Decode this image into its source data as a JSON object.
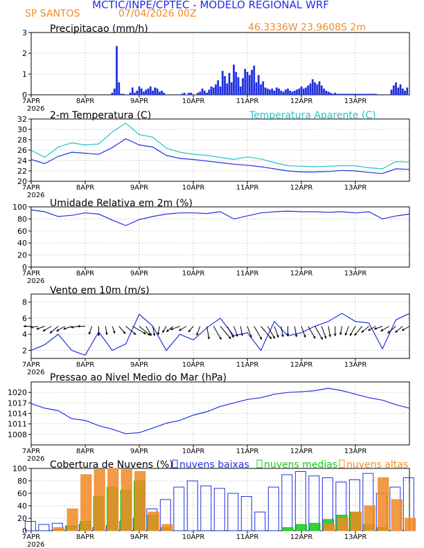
{
  "header": {
    "title": "MCTIC/INPE/CPTEC - MODELO REGIONAL WRF",
    "station": "SP SANTOS",
    "run": "07/04/2026 00Z",
    "location": "46.3336W 23.9608S 2m"
  },
  "colors": {
    "title": "#1f2fe0",
    "orange": "#f08a24",
    "blue": "#1f2fe0",
    "cyan": "#22c2c6",
    "green": "#17c41c",
    "grid": "#888888",
    "arrow": "#000000"
  },
  "time_axis": {
    "labels": [
      "7APR",
      "8APR",
      "9APR",
      "10APR",
      "11APR",
      "12APR",
      "13APR"
    ],
    "year": "2026",
    "start_hour": 0,
    "end_hour": 168
  },
  "chart_data": [
    {
      "id": "precip",
      "type": "bar",
      "title": "Precipitacao (mm/h)",
      "ylim": [
        0,
        3
      ],
      "yticks": [
        "0",
        "1",
        "2",
        "3"
      ],
      "ytick_values": [
        0,
        1,
        2,
        3
      ],
      "grid": true,
      "color": "#1f2fe0",
      "x": [
        36,
        37,
        38,
        39,
        40,
        41,
        44,
        45,
        46,
        47,
        48,
        49,
        50,
        51,
        52,
        53,
        54,
        55,
        56,
        57,
        58,
        59,
        67,
        68,
        70,
        71,
        74,
        75,
        76,
        77,
        78,
        79,
        80,
        81,
        82,
        83,
        84,
        85,
        86,
        87,
        88,
        89,
        90,
        91,
        92,
        93,
        94,
        95,
        96,
        97,
        98,
        99,
        100,
        101,
        102,
        103,
        104,
        105,
        106,
        107,
        108,
        109,
        110,
        111,
        112,
        113,
        114,
        115,
        116,
        117,
        118,
        119,
        120,
        121,
        122,
        123,
        124,
        125,
        126,
        127,
        128,
        129,
        130,
        131,
        132,
        133,
        134,
        135,
        136,
        137,
        138,
        139,
        140,
        141,
        142,
        143,
        144,
        145,
        146,
        147,
        148,
        149,
        150,
        151,
        152,
        153,
        160,
        161,
        162,
        163,
        164,
        165,
        166,
        167
      ],
      "values": [
        0.1,
        0.3,
        2.35,
        0.6,
        0.05,
        0.05,
        0.1,
        0.35,
        0.1,
        0.2,
        0.4,
        0.3,
        0.15,
        0.25,
        0.3,
        0.4,
        0.2,
        0.35,
        0.3,
        0.15,
        0.2,
        0.1,
        0.05,
        0.1,
        0.1,
        0.1,
        0.1,
        0.15,
        0.3,
        0.2,
        0.1,
        0.25,
        0.4,
        0.35,
        0.5,
        0.7,
        0.4,
        1.15,
        0.9,
        0.55,
        1.05,
        0.6,
        1.45,
        1.1,
        0.85,
        0.4,
        0.8,
        1.25,
        1.1,
        0.95,
        1.2,
        1.4,
        0.6,
        0.95,
        0.5,
        0.65,
        0.35,
        0.3,
        0.25,
        0.3,
        0.2,
        0.35,
        0.3,
        0.2,
        0.15,
        0.25,
        0.3,
        0.2,
        0.15,
        0.2,
        0.25,
        0.3,
        0.4,
        0.3,
        0.35,
        0.45,
        0.55,
        0.75,
        0.6,
        0.5,
        0.65,
        0.45,
        0.3,
        0.2,
        0.15,
        0.1,
        0.05,
        0.1,
        0.05,
        0.05,
        0.05,
        0.05,
        0.05,
        0.05,
        0.05,
        0.05,
        0.05,
        0.05,
        0.05,
        0.05,
        0.05,
        0.05,
        0.05,
        0.05,
        0.05,
        0.05,
        0.25,
        0.45,
        0.6,
        0.35,
        0.5,
        0.3,
        0.2,
        0.35
      ]
    },
    {
      "id": "temp",
      "type": "line",
      "title": "2-m Temperatura (C)",
      "legend": "Temperatura Aparente (C)",
      "ylim": [
        20,
        32
      ],
      "yticks": [
        "20",
        "22",
        "24",
        "26",
        "28",
        "30",
        "32"
      ],
      "ytick_values": [
        20,
        22,
        24,
        26,
        28,
        30,
        32
      ],
      "grid": true,
      "series": [
        {
          "color": "#1f2fe0",
          "x": [
            0,
            6,
            12,
            18,
            24,
            30,
            36,
            42,
            48,
            54,
            60,
            66,
            72,
            78,
            84,
            90,
            96,
            102,
            108,
            114,
            120,
            126,
            132,
            138,
            144,
            150,
            156,
            162,
            168
          ],
          "values": [
            24.2,
            23.4,
            24.8,
            25.6,
            25.4,
            25.2,
            26.5,
            28.2,
            27.0,
            26.6,
            25.0,
            24.4,
            24.2,
            23.9,
            23.6,
            23.3,
            23.1,
            22.8,
            22.4,
            22.0,
            21.8,
            21.8,
            21.9,
            22.1,
            22.0,
            21.7,
            21.5,
            22.4,
            22.3
          ]
        },
        {
          "color": "#22c2c6",
          "x": [
            0,
            6,
            12,
            18,
            24,
            30,
            36,
            42,
            48,
            54,
            60,
            66,
            72,
            78,
            84,
            90,
            96,
            102,
            108,
            114,
            120,
            126,
            132,
            138,
            144,
            150,
            156,
            162,
            168
          ],
          "values": [
            26.0,
            24.6,
            26.6,
            27.4,
            27.0,
            27.2,
            29.5,
            31.2,
            29.0,
            28.5,
            26.4,
            25.6,
            25.2,
            25.0,
            24.6,
            24.2,
            24.7,
            24.3,
            23.6,
            23.0,
            22.9,
            22.8,
            22.9,
            23.0,
            23.0,
            22.6,
            22.4,
            23.8,
            23.7
          ]
        }
      ]
    },
    {
      "id": "rh",
      "type": "line",
      "title": "Umidade Relativa em 2m (%)",
      "ylim": [
        0,
        100
      ],
      "yticks": [
        "0",
        "20",
        "40",
        "60",
        "80",
        "100"
      ],
      "ytick_values": [
        0,
        20,
        40,
        60,
        80,
        100
      ],
      "grid": true,
      "series": [
        {
          "color": "#1f2fe0",
          "x": [
            0,
            6,
            12,
            18,
            24,
            30,
            36,
            42,
            48,
            54,
            60,
            66,
            72,
            78,
            84,
            90,
            96,
            102,
            108,
            114,
            120,
            126,
            132,
            138,
            144,
            150,
            156,
            162,
            168
          ],
          "values": [
            95,
            92,
            84,
            86,
            90,
            88,
            78,
            69,
            79,
            84,
            88,
            90,
            90,
            89,
            92,
            80,
            85,
            90,
            92,
            93,
            92,
            92,
            91,
            92,
            90,
            92,
            80,
            85,
            88
          ]
        }
      ]
    },
    {
      "id": "wind",
      "type": "line",
      "title": "Vento em 10m (m/s)",
      "ylim": [
        1,
        9
      ],
      "yticks": [
        "2",
        "4",
        "6",
        "8"
      ],
      "ytick_values": [
        2,
        4,
        6,
        8
      ],
      "grid": true,
      "series": [
        {
          "color": "#1f2fe0",
          "x": [
            0,
            6,
            12,
            18,
            24,
            30,
            36,
            42,
            48,
            54,
            60,
            66,
            72,
            78,
            84,
            90,
            96,
            102,
            108,
            114,
            120,
            126,
            132,
            138,
            144,
            150,
            156,
            162,
            168
          ],
          "values": [
            2.0,
            2.7,
            4.0,
            2.0,
            1.4,
            4.3,
            2.0,
            2.8,
            6.5,
            5.0,
            2.0,
            4.0,
            3.3,
            4.8,
            6.0,
            3.8,
            4.2,
            2.0,
            5.6,
            3.8,
            4.2,
            5.0,
            5.6,
            6.6,
            5.6,
            5.4,
            2.2,
            5.8,
            6.6
          ]
        }
      ],
      "vectors": {
        "x": [
          0,
          3,
          6,
          9,
          12,
          15,
          18,
          21,
          24,
          27,
          30,
          33,
          36,
          39,
          42,
          45,
          48,
          51,
          54,
          57,
          60,
          63,
          66,
          69,
          72,
          75,
          78,
          81,
          84,
          87,
          90,
          93,
          96,
          99,
          102,
          105,
          108,
          111,
          114,
          117,
          120,
          123,
          126,
          129,
          132,
          135,
          138,
          141,
          144,
          147,
          150,
          153,
          156,
          159,
          162,
          165,
          168
        ],
        "speed": [
          2,
          2,
          2.5,
          3,
          3.5,
          3,
          2.5,
          2,
          2,
          2.5,
          3,
          2.5,
          2,
          3,
          4.5,
          5.5,
          5,
          3.5,
          3,
          2.5,
          2,
          2.5,
          3,
          2.5,
          2,
          3,
          4.5,
          5.5,
          6,
          4.5,
          3.5,
          3,
          4,
          5.5,
          6,
          5,
          4,
          3.5,
          3,
          3.5,
          4,
          5,
          5.5,
          4.5,
          3.5,
          3,
          2.5,
          3,
          3.5,
          4,
          3,
          2.5,
          2.5,
          3,
          3.5,
          3,
          2.5
        ],
        "dir": [
          270,
          260,
          250,
          240,
          230,
          240,
          250,
          260,
          270,
          200,
          180,
          170,
          160,
          140,
          130,
          120,
          130,
          150,
          170,
          190,
          210,
          230,
          250,
          240,
          220,
          200,
          170,
          150,
          140,
          150,
          160,
          170,
          160,
          150,
          140,
          150,
          160,
          170,
          180,
          170,
          160,
          150,
          150,
          160,
          170,
          180,
          190,
          200,
          210,
          220,
          230,
          240,
          250,
          240,
          230,
          230,
          240
        ]
      }
    },
    {
      "id": "pressure",
      "type": "line",
      "title": "Pressao ao Nivel Medio do Mar (hPa)",
      "ylim": [
        1005,
        1023
      ],
      "yticks": [
        "1008",
        "1011",
        "1014",
        "1017",
        "1020"
      ],
      "ytick_values": [
        1008,
        1011,
        1014,
        1017,
        1020
      ],
      "grid": true,
      "series": [
        {
          "color": "#1f2fe0",
          "x": [
            0,
            6,
            12,
            18,
            24,
            30,
            36,
            42,
            48,
            54,
            60,
            66,
            72,
            78,
            84,
            90,
            96,
            102,
            108,
            114,
            120,
            126,
            132,
            138,
            144,
            150,
            156,
            162,
            168
          ],
          "values": [
            1016.8,
            1015.5,
            1014.8,
            1012.5,
            1012.0,
            1010.5,
            1009.5,
            1008.2,
            1008.5,
            1009.8,
            1011.2,
            1012.0,
            1013.5,
            1014.5,
            1016.0,
            1017.0,
            1018.0,
            1018.5,
            1019.5,
            1020.0,
            1020.2,
            1020.5,
            1021.2,
            1020.5,
            1019.5,
            1018.5,
            1017.8,
            1016.5,
            1015.5
          ]
        }
      ]
    },
    {
      "id": "clouds",
      "type": "bar",
      "title": "Cobertura de Nuvens (%)",
      "ylim": [
        0,
        100
      ],
      "yticks": [
        "0",
        "20",
        "40",
        "60",
        "80",
        "100"
      ],
      "ytick_values": [
        0,
        20,
        40,
        60,
        80,
        100
      ],
      "grid": true,
      "series": [
        {
          "name": "nuvens baixas",
          "color": "#1f2fe0",
          "x": [
            0,
            6,
            12,
            18,
            24,
            30,
            36,
            42,
            48,
            54,
            60,
            66,
            72,
            78,
            84,
            90,
            96,
            102,
            108,
            114,
            120,
            126,
            132,
            138,
            144,
            150,
            156,
            162,
            168
          ],
          "values": [
            15,
            10,
            12,
            8,
            10,
            5,
            8,
            15,
            20,
            35,
            50,
            70,
            80,
            72,
            68,
            60,
            55,
            30,
            70,
            90,
            95,
            88,
            85,
            78,
            82,
            92,
            60,
            70,
            85
          ]
        },
        {
          "name": "nuvens medias",
          "color": "#17c41c",
          "x": [
            0,
            6,
            12,
            18,
            24,
            30,
            36,
            42,
            48,
            54,
            60,
            66,
            72,
            78,
            84,
            90,
            96,
            102,
            108,
            114,
            120,
            126,
            132,
            138,
            144,
            150,
            156,
            162,
            168
          ],
          "values": [
            0,
            0,
            2,
            8,
            15,
            55,
            70,
            65,
            80,
            25,
            5,
            0,
            0,
            0,
            0,
            0,
            0,
            0,
            0,
            5,
            10,
            12,
            18,
            25,
            30,
            10,
            5,
            0,
            0
          ]
        },
        {
          "name": "nuvens altas",
          "color": "#f08a24",
          "x": [
            0,
            6,
            12,
            18,
            24,
            30,
            36,
            42,
            48,
            54,
            60,
            66,
            72,
            78,
            84,
            90,
            96,
            102,
            108,
            114,
            120,
            126,
            132,
            138,
            144,
            150,
            156,
            162,
            168
          ],
          "values": [
            0,
            0,
            5,
            35,
            90,
            98,
            100,
            98,
            95,
            30,
            10,
            0,
            0,
            0,
            0,
            0,
            0,
            0,
            0,
            0,
            0,
            0,
            10,
            20,
            30,
            40,
            85,
            50,
            20
          ]
        }
      ]
    }
  ]
}
